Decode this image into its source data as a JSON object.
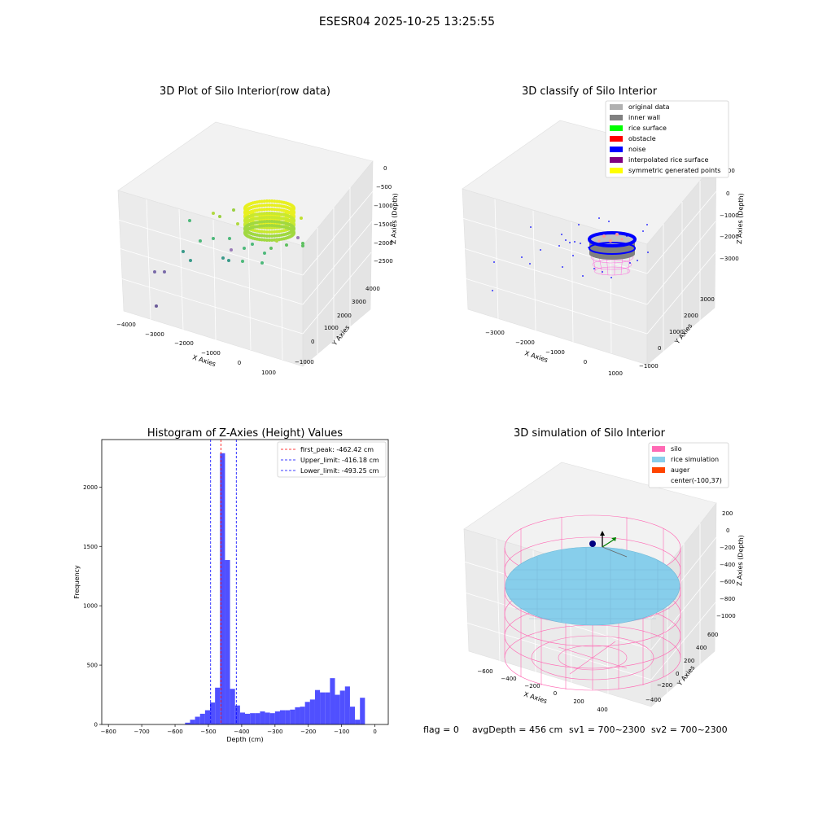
{
  "suptitle": "ESESR04 2025-10-25 13:25:55",
  "status": {
    "flag": "flag = 0",
    "avg": "avgDepth = 456 cm",
    "sv1": "sv1 = 700~2300",
    "sv2": "sv2 = 700~2300"
  },
  "colors": {
    "hist_bar": "#5050ff",
    "peak_line": "#ff0000",
    "limit_line": "#0000ff",
    "silo": "#ff69b4",
    "rice": "#87ceeb",
    "auger": "#ff4500",
    "inner_wall": "#808080",
    "rice_surface": "#00ff00",
    "obstacle": "#ff0000",
    "noise": "#0000ff",
    "interp": "#800080",
    "sym": "#ffff00",
    "original": "#b0b0b0"
  },
  "chart_data": [
    {
      "type": "scatter",
      "title": "3D Plot of Silo Interior(row data)",
      "xlabel": "X Axies",
      "ylabel": "Y Axies",
      "zlabel": "Z Axies (Depth)",
      "xticks": [
        "−4000",
        "−3000",
        "−2000",
        "−1000",
        "0",
        "1000"
      ],
      "yticks": [
        "−1000",
        "0",
        "1000",
        "2000",
        "3000",
        "4000"
      ],
      "zticks": [
        "−2500",
        "−2000",
        "−1500",
        "−1000",
        "−500",
        "0"
      ],
      "xlim": [
        -4000,
        1000
      ],
      "ylim": [
        -1000,
        4000
      ],
      "zlim": [
        -2700,
        0
      ]
    },
    {
      "type": "scatter",
      "title": "3D classify of Silo Interior",
      "xlabel": "X Axies",
      "ylabel": "Y Axies",
      "zlabel": "Z Axies (Depth)",
      "xticks": [
        "−3000",
        "−2000",
        "−1000",
        "0",
        "1000"
      ],
      "yticks": [
        "−1000",
        "0",
        "1000",
        "2000",
        "3000"
      ],
      "zticks": [
        "−3000",
        "−2000",
        "−1000",
        "0",
        "1000"
      ],
      "legend_position": "top-right",
      "legend": [
        "original data",
        "inner wall",
        "rice surface",
        "obstacle",
        "noise",
        "interpolated rice surface",
        "symmetric generated points"
      ]
    },
    {
      "type": "bar",
      "title": "Histogram of Z-Axies (Height) Values",
      "xlabel": "Depth (cm)",
      "ylabel": "Frequency",
      "xlim": [
        -820,
        40
      ],
      "ylim": [
        0,
        2400
      ],
      "xticks": [
        -800,
        -700,
        -600,
        -500,
        -400,
        -300,
        -200,
        -100,
        0
      ],
      "xtick_labels": [
        "−800",
        "−700",
        "−600",
        "−500",
        "−400",
        "−300",
        "−200",
        "−100",
        "0"
      ],
      "yticks": [
        0,
        500,
        1000,
        1500,
        2000
      ],
      "bin_width": 15,
      "bins": [
        {
          "x": -570,
          "v": 15
        },
        {
          "x": -555,
          "v": 40
        },
        {
          "x": -540,
          "v": 65
        },
        {
          "x": -525,
          "v": 90
        },
        {
          "x": -510,
          "v": 120
        },
        {
          "x": -495,
          "v": 185
        },
        {
          "x": -480,
          "v": 310
        },
        {
          "x": -465,
          "v": 2285
        },
        {
          "x": -450,
          "v": 1385
        },
        {
          "x": -435,
          "v": 300
        },
        {
          "x": -420,
          "v": 160
        },
        {
          "x": -405,
          "v": 100
        },
        {
          "x": -390,
          "v": 90
        },
        {
          "x": -375,
          "v": 95
        },
        {
          "x": -360,
          "v": 95
        },
        {
          "x": -345,
          "v": 110
        },
        {
          "x": -330,
          "v": 100
        },
        {
          "x": -315,
          "v": 95
        },
        {
          "x": -300,
          "v": 110
        },
        {
          "x": -285,
          "v": 120
        },
        {
          "x": -270,
          "v": 120
        },
        {
          "x": -255,
          "v": 125
        },
        {
          "x": -240,
          "v": 145
        },
        {
          "x": -225,
          "v": 150
        },
        {
          "x": -210,
          "v": 190
        },
        {
          "x": -195,
          "v": 210
        },
        {
          "x": -180,
          "v": 290
        },
        {
          "x": -165,
          "v": 270
        },
        {
          "x": -150,
          "v": 270
        },
        {
          "x": -135,
          "v": 390
        },
        {
          "x": -120,
          "v": 250
        },
        {
          "x": -105,
          "v": 285
        },
        {
          "x": -90,
          "v": 320
        },
        {
          "x": -75,
          "v": 150
        },
        {
          "x": -60,
          "v": 40
        },
        {
          "x": -45,
          "v": 225
        }
      ],
      "lines": [
        {
          "label": "first_peak: -462.42 cm",
          "x": -462.42,
          "color": "#ff0000"
        },
        {
          "label": "Upper_limit: -416.18 cm",
          "x": -416.18,
          "color": "#0000ff"
        },
        {
          "label": "Lower_limit: -493.25 cm",
          "x": -493.25,
          "color": "#0000ff"
        }
      ],
      "legend_position": "top-right"
    },
    {
      "type": "scatter",
      "title": "3D simulation of Silo Interior",
      "xlabel": "X Axies",
      "ylabel": "Y Axies",
      "zlabel": "Z Axies (Depth)",
      "xticks": [
        "−600",
        "−400",
        "−200",
        "0",
        "200",
        "400"
      ],
      "yticks": [
        "−400",
        "−200",
        "0",
        "200",
        "400",
        "600"
      ],
      "zticks": [
        "−1000",
        "−800",
        "−600",
        "−400",
        "−200",
        "0",
        "200"
      ],
      "legend_position": "top-right",
      "legend": [
        "silo",
        "rice simulation",
        "auger",
        "center(-100,37)"
      ]
    }
  ]
}
